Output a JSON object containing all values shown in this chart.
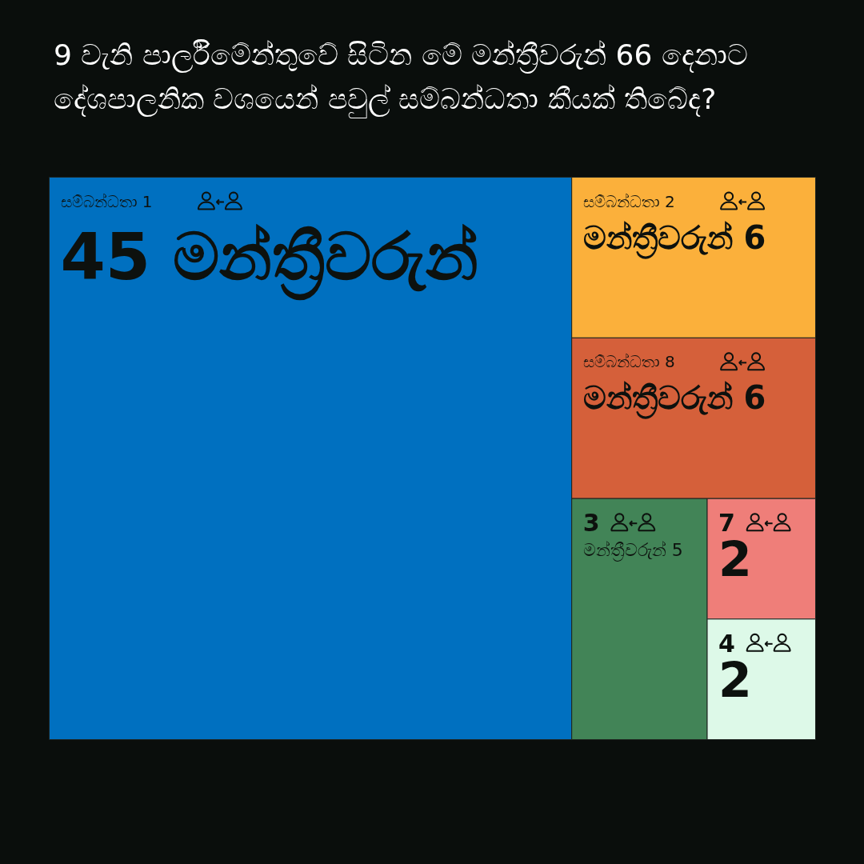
{
  "chart_data": {
    "type": "other",
    "title": "9 වැනි පාර්ලිමේන්තුවේ සිටින මේ මන්ත්‍රීවරුන් 66 දෙනාට දේශපාලනික වශයෙන් පවුල් සම්බන්ධතා කීයක් තිබේද?",
    "categories": [
      "සම්බන්ධතා 1",
      "සම්බන්ධතා 2",
      "සම්බන්ධතා 8",
      "3",
      "7",
      "4"
    ],
    "values": [
      45,
      6,
      6,
      5,
      2,
      2
    ],
    "value_labels": [
      "45 මන්ත්‍රීවරුන්",
      "මන්ත්‍රීවරුන් 6",
      "මන්ත්‍රීවරුන් 6",
      "මන්ත්‍රීවරුන් 5",
      "2",
      "2"
    ],
    "colors": [
      "#0070c0",
      "#fbb03b",
      "#d5603a",
      "#428457",
      "#ef7e79",
      "#ddf9e8"
    ]
  }
}
